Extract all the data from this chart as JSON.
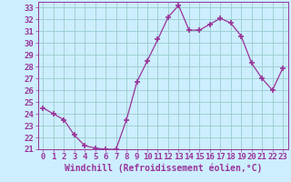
{
  "x": [
    0,
    1,
    2,
    3,
    4,
    5,
    6,
    7,
    8,
    9,
    10,
    11,
    12,
    13,
    14,
    15,
    16,
    17,
    18,
    19,
    20,
    21,
    22,
    23
  ],
  "y": [
    24.5,
    24.0,
    23.5,
    22.2,
    21.3,
    21.1,
    21.0,
    21.0,
    23.5,
    26.7,
    28.5,
    30.3,
    32.2,
    33.2,
    31.1,
    31.1,
    31.6,
    32.1,
    31.7,
    30.6,
    28.3,
    27.0,
    26.0,
    27.9
  ],
  "line_color": "#993399",
  "marker": "+",
  "marker_size": 4,
  "marker_lw": 1.2,
  "bg_color": "#cceeff",
  "grid_color": "#99cccc",
  "xlabel": "Windchill (Refroidissement éolien,°C)",
  "xlabel_fontsize": 7,
  "tick_fontsize": 6.5,
  "ylim": [
    21,
    33.5
  ],
  "xlim": [
    -0.5,
    23.5
  ],
  "yticks": [
    21,
    22,
    23,
    24,
    25,
    26,
    27,
    28,
    29,
    30,
    31,
    32,
    33
  ],
  "xticks": [
    0,
    1,
    2,
    3,
    4,
    5,
    6,
    7,
    8,
    9,
    10,
    11,
    12,
    13,
    14,
    15,
    16,
    17,
    18,
    19,
    20,
    21,
    22,
    23
  ]
}
